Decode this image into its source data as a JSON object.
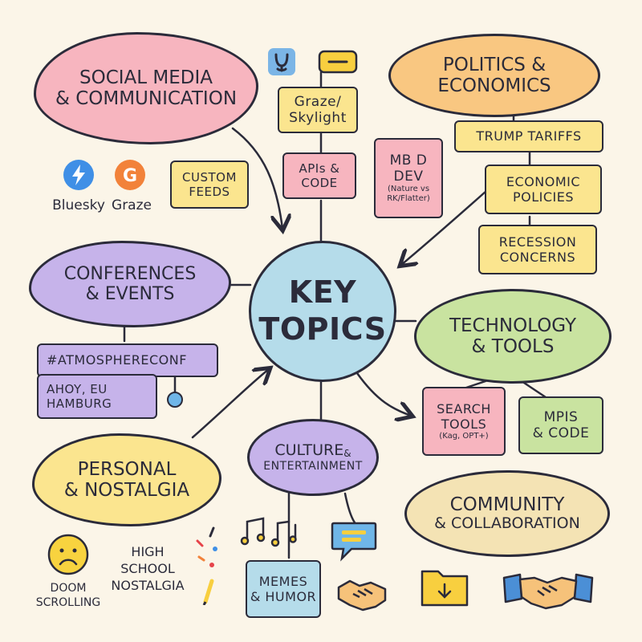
{
  "center": {
    "line1": "KEY",
    "line2": "TOPICS"
  },
  "social": {
    "line1": "SOCIAL MEDIA",
    "line2": "& COMMUNICATION",
    "bluesky": "Bluesky",
    "graze": "Graze",
    "graze_letter": "G",
    "custom1": "CUSTOM",
    "custom2": "FEEDS"
  },
  "graze_skylight": {
    "line1": "Graze/",
    "line2": "Skylight"
  },
  "apis_code_top": {
    "line1": "APIs &",
    "line2": "CODE"
  },
  "politics": {
    "line1": "POLITICS &",
    "line2": "ECONOMICS",
    "tariffs": "TRUMP TARIFFS",
    "econ1": "ECONOMIC",
    "econ2": "POLICIES",
    "rec1": "RECESSION",
    "rec2": "CONCERNS"
  },
  "mbd": {
    "line1": "MB D",
    "line2": "DEV",
    "line3": "(Nature vs",
    "line4": "RK/Flatter)"
  },
  "conferences": {
    "line1": "CONFERENCES",
    "line2": "& EVENTS",
    "tag": "#ATMOSPHERECONF",
    "place1": "AHOY, EU",
    "place2": "HAMBURG"
  },
  "technology": {
    "line1": "TECHNOLOGY",
    "line2": "& TOOLS",
    "search1": "SEARCH",
    "search2": "TOOLS",
    "search3": "(Kag, OPT+)",
    "mpis1": "MPIS",
    "mpis2": "& CODE"
  },
  "personal": {
    "line1": "PERSONAL",
    "line2": "& NOSTALGIA",
    "doom1": "DOOM",
    "doom2": "SCROLLING",
    "hs1": "HIGH",
    "hs2": "SCHOOL",
    "hs3": "NOSTALGIA"
  },
  "culture": {
    "line1": "CULTURE",
    "amp": "&",
    "line2": "ENTERTAINMENT",
    "memes1": "MEMES",
    "memes2": "& HUMOR"
  },
  "community": {
    "line1": "COMMUNITY",
    "line2": "& COLLABORATION"
  },
  "colors": {
    "pink": "#f7b5bf",
    "orange": "#f9c781",
    "yellow": "#fbe58f",
    "purple": "#c6b3ea",
    "blue": "#b5dcea",
    "green": "#c9e3a0",
    "cream": "#f4e3b4",
    "ink": "#2b2b3a",
    "bg": "#fbf5e8"
  }
}
